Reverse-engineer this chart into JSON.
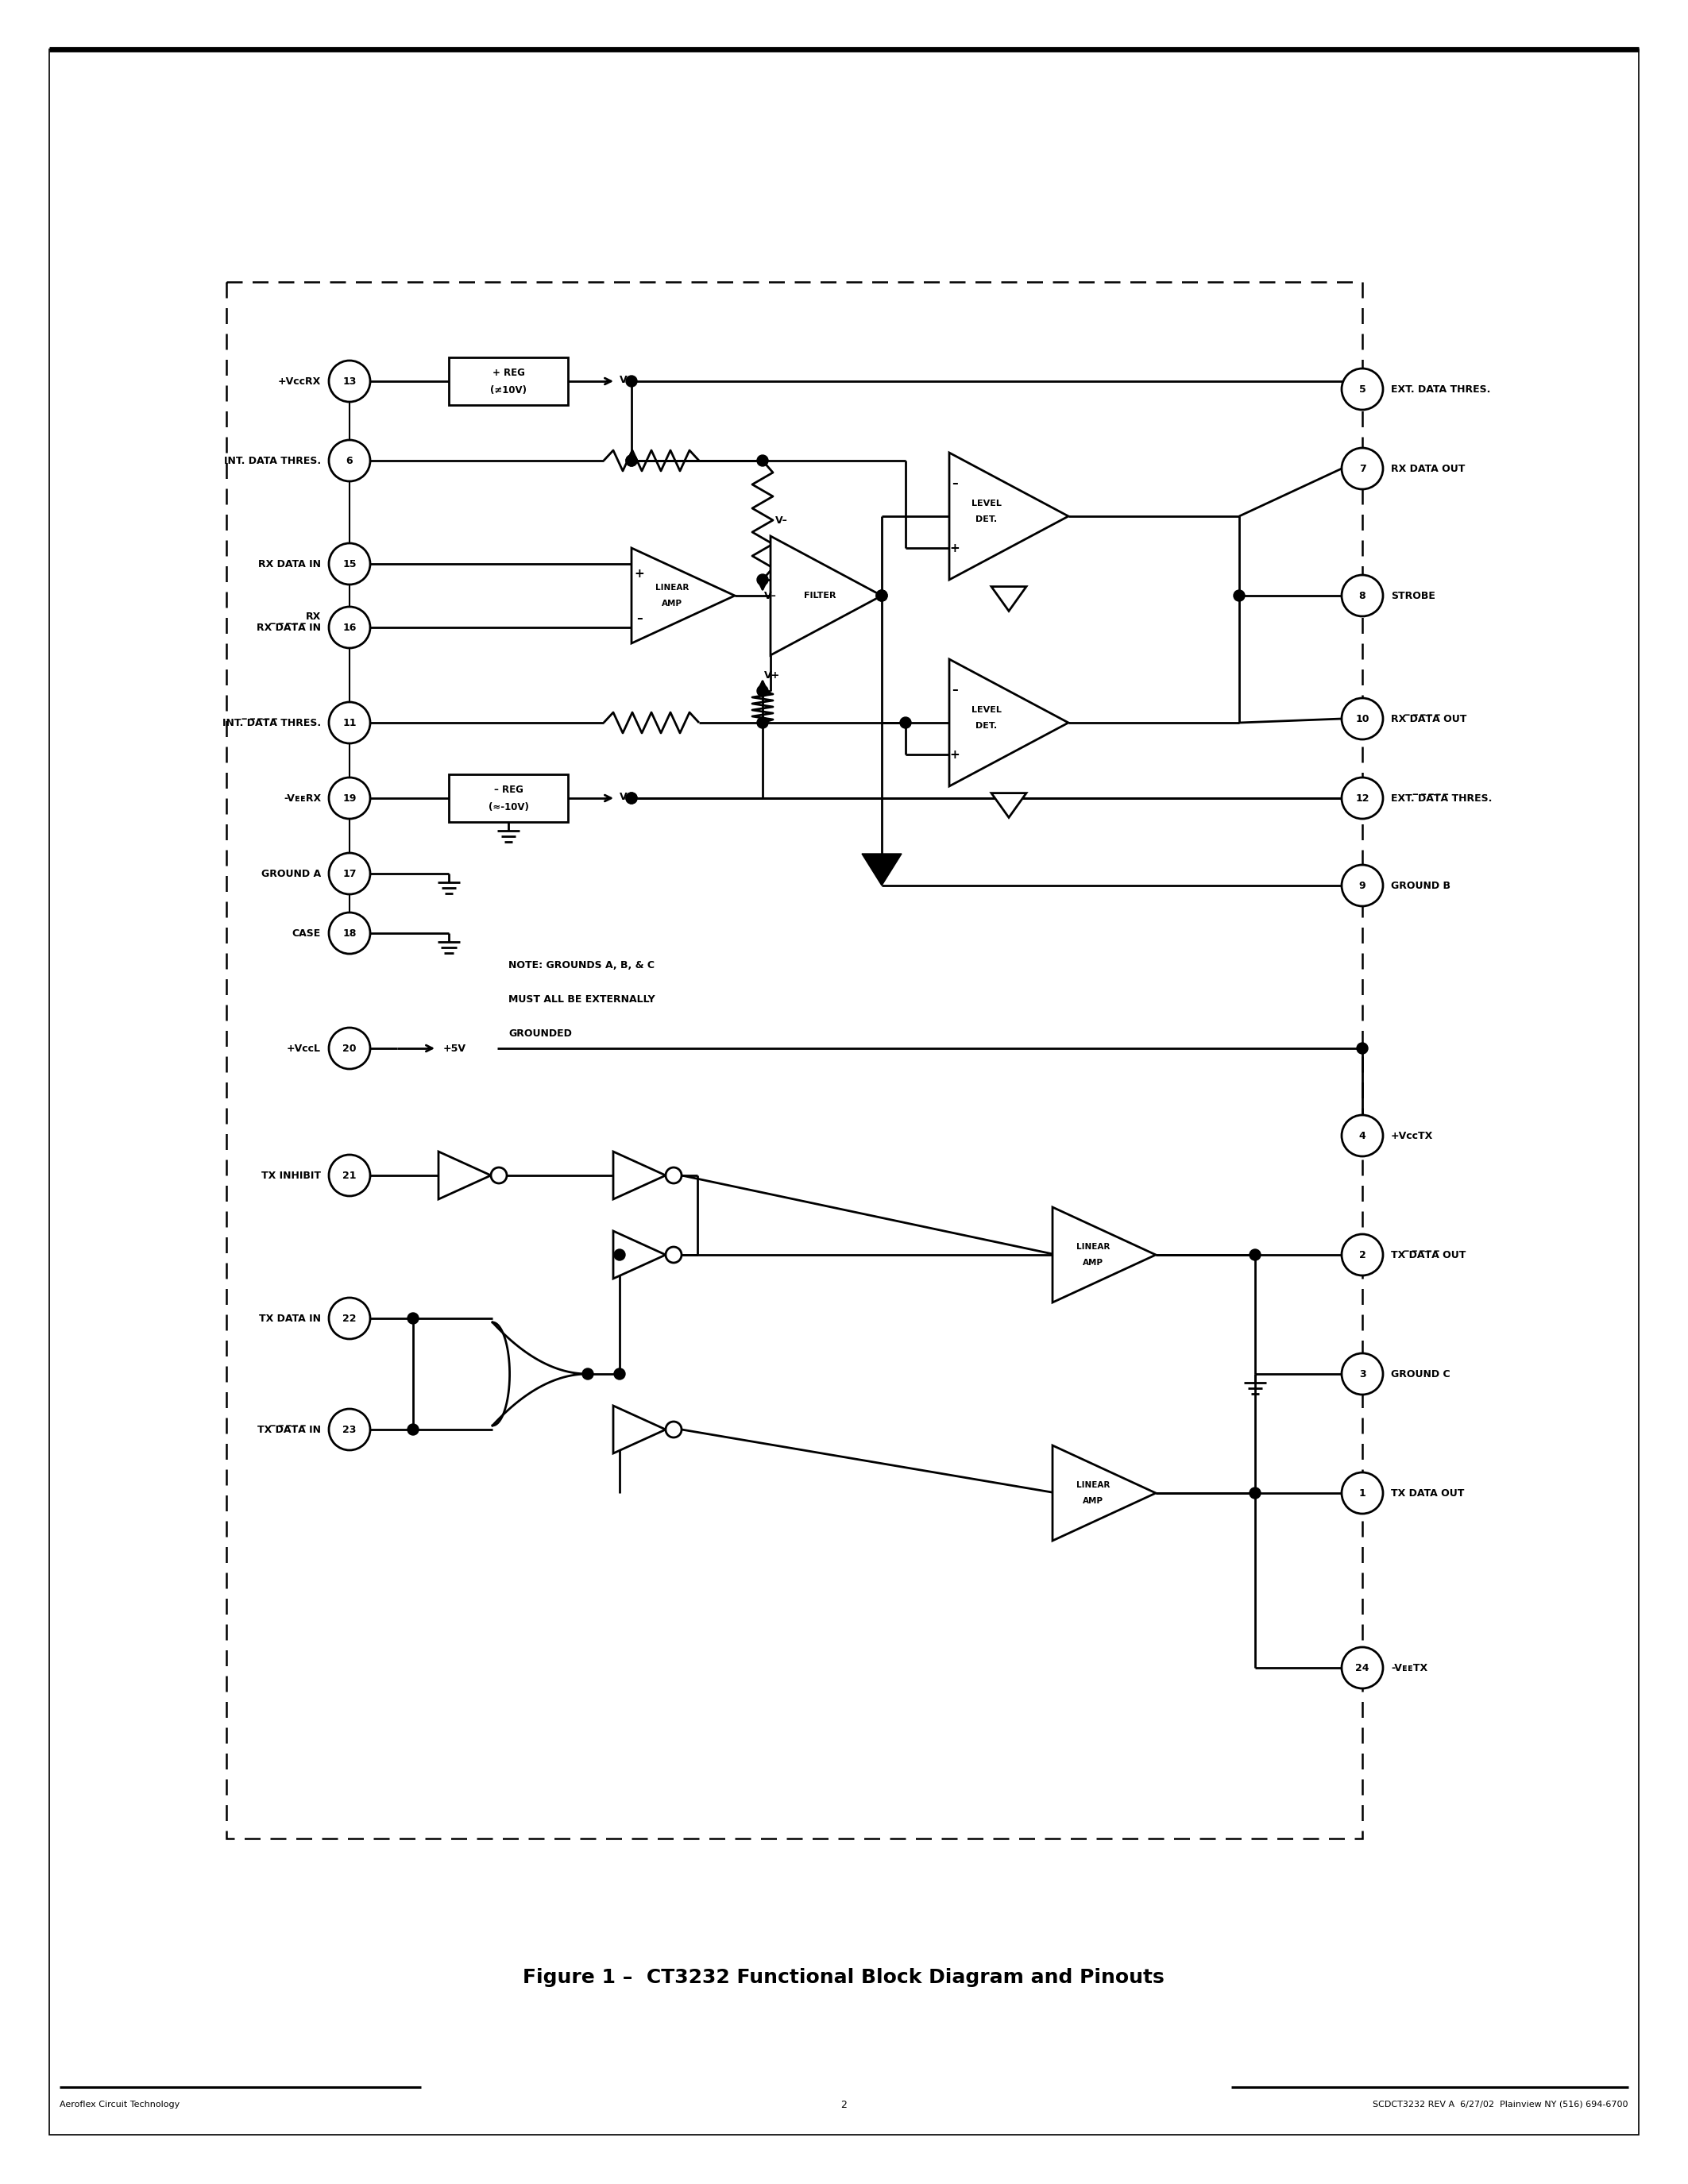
{
  "background_color": "#ffffff",
  "figure_caption": "Figure 1 –  CT3232 Functional Block Diagram and Pinouts",
  "footer_left": "Aeroflex Circuit Technology",
  "footer_center": "2",
  "footer_right": "SCDCT3232 REV A  6/27/02  Plainview NY (516) 694-6700"
}
